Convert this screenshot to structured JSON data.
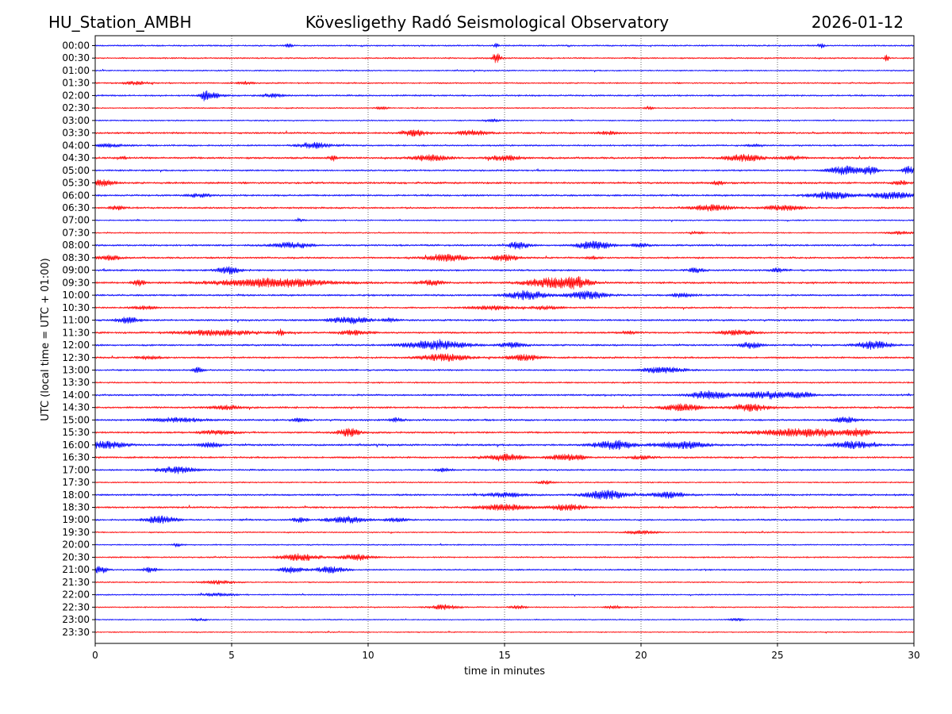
{
  "header": {
    "station": "HU_Station_AMBH",
    "observatory": "Kövesligethy Radó Seismological Observatory",
    "date": "2026-01-12"
  },
  "chart_data": {
    "type": "line",
    "title": "Kövesligethy Radó Seismological Observatory",
    "xlabel": "time in minutes",
    "ylabel": "UTC (local time = UTC + 01:00)",
    "xlim": [
      0,
      30
    ],
    "x_ticks": [
      "0",
      "5",
      "10",
      "15",
      "20",
      "25",
      "30"
    ],
    "x_grid": "dotted vertical lines at each x tick",
    "colors": {
      "even_rows": "#0000ff",
      "odd_rows": "#ff0000"
    },
    "rows": [
      {
        "label": "00:00",
        "noise": 0.9,
        "events": [
          [
            7.1,
            2.2,
            0.1
          ],
          [
            14.7,
            2.6,
            0.06
          ],
          [
            26.6,
            2.4,
            0.08
          ]
        ]
      },
      {
        "label": "00:30",
        "noise": 0.9,
        "events": [
          [
            14.7,
            5.5,
            0.12
          ],
          [
            29,
            3.5,
            0.06
          ]
        ]
      },
      {
        "label": "01:00",
        "noise": 0.8,
        "events": []
      },
      {
        "label": "01:30",
        "noise": 0.9,
        "events": [
          [
            1.5,
            1.8,
            0.3
          ],
          [
            5.5,
            1.5,
            0.2
          ]
        ]
      },
      {
        "label": "02:00",
        "noise": 1.0,
        "events": [
          [
            4,
            6,
            0.08
          ],
          [
            4.3,
            3,
            0.3
          ],
          [
            6.5,
            2,
            0.3
          ]
        ]
      },
      {
        "label": "02:30",
        "noise": 0.8,
        "events": [
          [
            10.5,
            1.5,
            0.15
          ],
          [
            20.3,
            1.8,
            0.1
          ]
        ]
      },
      {
        "label": "03:00",
        "noise": 0.8,
        "events": [
          [
            14.5,
            1.6,
            0.2
          ]
        ]
      },
      {
        "label": "03:30",
        "noise": 1.1,
        "events": [
          [
            11.7,
            3.2,
            0.35
          ],
          [
            13.8,
            2.6,
            0.4
          ],
          [
            18.8,
            1.7,
            0.3
          ]
        ]
      },
      {
        "label": "04:00",
        "noise": 1.0,
        "events": [
          [
            0.5,
            1.8,
            0.4
          ],
          [
            8,
            3.4,
            0.4
          ],
          [
            24.2,
            1.7,
            0.2
          ]
        ]
      },
      {
        "label": "04:30",
        "noise": 1.2,
        "events": [
          [
            1,
            1.8,
            0.1
          ],
          [
            8.7,
            3,
            0.1
          ],
          [
            12.3,
            3.4,
            0.45
          ],
          [
            15,
            3,
            0.4
          ],
          [
            23.8,
            3.6,
            0.5
          ],
          [
            25.5,
            2,
            0.3
          ]
        ]
      },
      {
        "label": "05:00",
        "noise": 1.0,
        "events": [
          [
            27.5,
            5.2,
            0.4
          ],
          [
            28.4,
            4.5,
            0.2
          ],
          [
            29.8,
            4.5,
            0.15
          ]
        ]
      },
      {
        "label": "05:30",
        "noise": 1.2,
        "events": [
          [
            0.2,
            4.5,
            0.3
          ],
          [
            22.8,
            2.4,
            0.15
          ],
          [
            29.5,
            2.2,
            0.2
          ]
        ]
      },
      {
        "label": "06:00",
        "noise": 1.1,
        "events": [
          [
            3.8,
            2,
            0.3
          ],
          [
            27,
            4.5,
            0.5
          ],
          [
            29.2,
            4,
            0.5
          ]
        ]
      },
      {
        "label": "06:30",
        "noise": 1.1,
        "events": [
          [
            0.8,
            2.2,
            0.2
          ],
          [
            22.6,
            3.4,
            0.55
          ],
          [
            25.2,
            3.2,
            0.45
          ]
        ]
      },
      {
        "label": "07:00",
        "noise": 0.8,
        "events": [
          [
            7.5,
            1.6,
            0.1
          ]
        ]
      },
      {
        "label": "07:30",
        "noise": 0.8,
        "events": [
          [
            22,
            1.5,
            0.2
          ],
          [
            29.5,
            1.5,
            0.3
          ]
        ]
      },
      {
        "label": "08:00",
        "noise": 1.1,
        "events": [
          [
            7.2,
            3.2,
            0.5
          ],
          [
            15.5,
            4.5,
            0.25
          ],
          [
            18.3,
            4.6,
            0.45
          ],
          [
            20,
            1.8,
            0.25
          ]
        ]
      },
      {
        "label": "08:30",
        "noise": 1.1,
        "events": [
          [
            0.5,
            2.5,
            0.3
          ],
          [
            12.9,
            4,
            0.5
          ],
          [
            15,
            3.4,
            0.35
          ],
          [
            18.2,
            1.6,
            0.2
          ]
        ]
      },
      {
        "label": "09:00",
        "noise": 1.1,
        "events": [
          [
            4.9,
            3.8,
            0.3
          ],
          [
            22,
            2.6,
            0.2
          ],
          [
            25,
            2,
            0.2
          ]
        ]
      },
      {
        "label": "09:30",
        "noise": 1.2,
        "events": [
          [
            1.6,
            4,
            0.15
          ],
          [
            6.5,
            5,
            1.4
          ],
          [
            12.3,
            3,
            0.3
          ],
          [
            16.8,
            6,
            0.7
          ],
          [
            17.7,
            4.5,
            0.3
          ]
        ]
      },
      {
        "label": "10:00",
        "noise": 1.1,
        "events": [
          [
            15.8,
            5,
            0.5
          ],
          [
            18,
            4.5,
            0.5
          ],
          [
            21.5,
            2,
            0.3
          ]
        ]
      },
      {
        "label": "10:30",
        "noise": 1.0,
        "events": [
          [
            1.8,
            1.8,
            0.3
          ],
          [
            14.5,
            2.6,
            0.5
          ],
          [
            16.5,
            2,
            0.4
          ]
        ]
      },
      {
        "label": "11:00",
        "noise": 1.1,
        "events": [
          [
            1.2,
            3.2,
            0.3
          ],
          [
            9.3,
            3.8,
            0.5
          ],
          [
            10.8,
            2,
            0.2
          ]
        ]
      },
      {
        "label": "11:30",
        "noise": 1.1,
        "events": [
          [
            4.5,
            3.2,
            1.0
          ],
          [
            6.8,
            3.3,
            0.1
          ],
          [
            9.5,
            2.6,
            0.4
          ],
          [
            19.5,
            1.8,
            0.2
          ],
          [
            23.5,
            2.6,
            0.5
          ]
        ]
      },
      {
        "label": "12:00",
        "noise": 1.1,
        "events": [
          [
            12.5,
            5.2,
            0.8
          ],
          [
            15.3,
            3,
            0.3
          ],
          [
            24,
            3.4,
            0.3
          ],
          [
            28.5,
            5,
            0.4
          ]
        ]
      },
      {
        "label": "12:30",
        "noise": 1.1,
        "events": [
          [
            2,
            2,
            0.3
          ],
          [
            12.8,
            4,
            0.6
          ],
          [
            15.7,
            3.3,
            0.4
          ]
        ]
      },
      {
        "label": "13:00",
        "noise": 1.0,
        "events": [
          [
            3.8,
            2.8,
            0.15
          ],
          [
            20.8,
            3.6,
            0.5
          ]
        ]
      },
      {
        "label": "13:30",
        "noise": 0.9,
        "events": []
      },
      {
        "label": "14:00",
        "noise": 1.1,
        "events": [
          [
            22.5,
            4.5,
            0.5
          ],
          [
            24.8,
            4,
            0.8
          ],
          [
            26,
            2,
            0.2
          ]
        ]
      },
      {
        "label": "14:30",
        "noise": 1.1,
        "events": [
          [
            4.8,
            2,
            0.4
          ],
          [
            21.5,
            3.8,
            0.5
          ],
          [
            24,
            3.8,
            0.5
          ]
        ]
      },
      {
        "label": "15:00",
        "noise": 1.1,
        "events": [
          [
            3,
            2.4,
            0.7
          ],
          [
            7.5,
            1.8,
            0.2
          ],
          [
            11,
            2,
            0.2
          ],
          [
            27.5,
            3,
            0.3
          ]
        ]
      },
      {
        "label": "15:30",
        "noise": 1.1,
        "events": [
          [
            4.5,
            2,
            0.5
          ],
          [
            9.3,
            4.5,
            0.3
          ],
          [
            26,
            4.5,
            1.2
          ],
          [
            28,
            3.2,
            0.3
          ]
        ]
      },
      {
        "label": "16:00",
        "noise": 1.2,
        "events": [
          [
            0.4,
            4,
            0.5
          ],
          [
            4.2,
            2.6,
            0.3
          ],
          [
            19,
            5.2,
            0.5
          ],
          [
            21.5,
            4.5,
            0.6
          ],
          [
            27.8,
            4,
            0.5
          ]
        ]
      },
      {
        "label": "16:30",
        "noise": 1.1,
        "events": [
          [
            15,
            3.6,
            0.5
          ],
          [
            17.3,
            3.4,
            0.45
          ],
          [
            20,
            1.8,
            0.3
          ]
        ]
      },
      {
        "label": "17:00",
        "noise": 1.0,
        "events": [
          [
            3,
            3.8,
            0.5
          ],
          [
            12.8,
            2,
            0.2
          ]
        ]
      },
      {
        "label": "17:30",
        "noise": 0.8,
        "events": [
          [
            16.5,
            1.8,
            0.2
          ]
        ]
      },
      {
        "label": "18:00",
        "noise": 1.1,
        "events": [
          [
            15,
            2.6,
            0.5
          ],
          [
            18.7,
            5.2,
            0.5
          ],
          [
            21,
            3.2,
            0.45
          ]
        ]
      },
      {
        "label": "18:30",
        "noise": 1.1,
        "events": [
          [
            15,
            3.6,
            0.6
          ],
          [
            17.3,
            3.6,
            0.45
          ]
        ]
      },
      {
        "label": "19:00",
        "noise": 1.0,
        "events": [
          [
            2.4,
            4.5,
            0.4
          ],
          [
            7.5,
            2.6,
            0.2
          ],
          [
            9.2,
            3.8,
            0.5
          ],
          [
            11,
            2,
            0.3
          ]
        ]
      },
      {
        "label": "19:30",
        "noise": 0.8,
        "events": [
          [
            20,
            1.8,
            0.4
          ]
        ]
      },
      {
        "label": "20:00",
        "noise": 0.8,
        "events": [
          [
            3,
            2.4,
            0.1
          ]
        ]
      },
      {
        "label": "20:30",
        "noise": 0.9,
        "events": [
          [
            7.5,
            3.8,
            0.5
          ],
          [
            9.6,
            3.2,
            0.4
          ]
        ]
      },
      {
        "label": "21:00",
        "noise": 0.9,
        "events": [
          [
            0.2,
            5,
            0.15
          ],
          [
            2,
            2.6,
            0.2
          ],
          [
            7.2,
            3.8,
            0.3
          ],
          [
            8.6,
            3.6,
            0.4
          ]
        ]
      },
      {
        "label": "21:30",
        "noise": 0.8,
        "events": [
          [
            4.5,
            1.8,
            0.4
          ]
        ]
      },
      {
        "label": "22:00",
        "noise": 0.8,
        "events": [
          [
            4.5,
            1.6,
            0.4
          ]
        ]
      },
      {
        "label": "22:30",
        "noise": 0.8,
        "events": [
          [
            12.8,
            2.6,
            0.35
          ],
          [
            15.5,
            2,
            0.2
          ],
          [
            19,
            1.5,
            0.2
          ]
        ]
      },
      {
        "label": "23:00",
        "noise": 0.7,
        "events": [
          [
            3.8,
            1.5,
            0.2
          ],
          [
            23.5,
            1.5,
            0.2
          ]
        ]
      },
      {
        "label": "23:30",
        "noise": 0.7,
        "events": []
      }
    ]
  }
}
